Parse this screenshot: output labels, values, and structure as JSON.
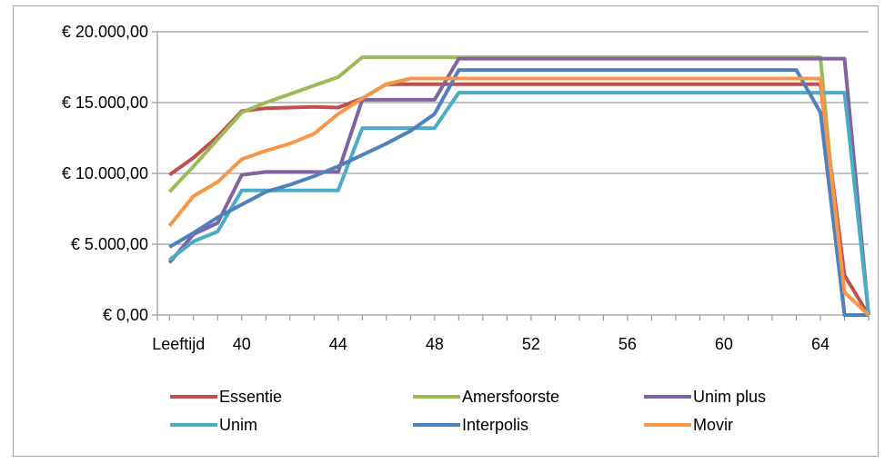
{
  "chart_data": {
    "type": "line",
    "title": "",
    "xlabel": "",
    "ylabel": "",
    "x_first_label": "Leeftijd",
    "x": [
      37,
      38,
      39,
      40,
      41,
      42,
      43,
      44,
      45,
      46,
      47,
      48,
      49,
      50,
      51,
      52,
      53,
      54,
      55,
      56,
      57,
      58,
      59,
      60,
      61,
      62,
      63,
      64,
      65,
      66
    ],
    "x_ticks": [
      "40",
      "44",
      "48",
      "52",
      "56",
      "60",
      "64"
    ],
    "ylim": [
      0,
      20000
    ],
    "y_ticks": [
      "€ 0,00",
      "€ 5.000,00",
      "€ 10.000,00",
      "€ 15.000,00",
      "€ 20.000,00"
    ],
    "grid": true,
    "legend_position": "bottom",
    "series": [
      {
        "name": "Essentie",
        "color": "#c0504d",
        "values": [
          9900,
          11100,
          12600,
          14400,
          14600,
          14650,
          14700,
          14650,
          15300,
          16300,
          16300,
          16300,
          16300,
          16300,
          16300,
          16300,
          16300,
          16300,
          16300,
          16300,
          16300,
          16300,
          16300,
          16300,
          16300,
          16300,
          16300,
          16300,
          2800,
          0
        ]
      },
      {
        "name": "Amersfoorste",
        "color": "#9bbb59",
        "values": [
          8700,
          10500,
          12400,
          14300,
          15000,
          15600,
          16200,
          16800,
          18200,
          18200,
          18200,
          18200,
          18200,
          18200,
          18200,
          18200,
          18200,
          18200,
          18200,
          18200,
          18200,
          18200,
          18200,
          18200,
          18200,
          18200,
          18200,
          18200,
          0,
          0
        ]
      },
      {
        "name": "Unim plus",
        "color": "#8064a2",
        "values": [
          3700,
          5700,
          6500,
          9900,
          10100,
          10100,
          10100,
          10100,
          15200,
          15200,
          15200,
          15200,
          18100,
          18100,
          18100,
          18100,
          18100,
          18100,
          18100,
          18100,
          18100,
          18100,
          18100,
          18100,
          18100,
          18100,
          18100,
          18100,
          18100,
          0
        ]
      },
      {
        "name": "Unim",
        "color": "#4bacc6",
        "values": [
          3900,
          5200,
          5900,
          8800,
          8800,
          8800,
          8800,
          8800,
          13200,
          13200,
          13200,
          13200,
          15700,
          15700,
          15700,
          15700,
          15700,
          15700,
          15700,
          15700,
          15700,
          15700,
          15700,
          15700,
          15700,
          15700,
          15700,
          15700,
          15700,
          0
        ]
      },
      {
        "name": "Interpolis",
        "color": "#4f81bd",
        "values": [
          4800,
          5800,
          6900,
          7800,
          8700,
          9200,
          9800,
          10500,
          11300,
          12100,
          13000,
          14200,
          17300,
          17300,
          17300,
          17300,
          17300,
          17300,
          17300,
          17300,
          17300,
          17300,
          17300,
          17300,
          17300,
          17300,
          17300,
          14300,
          0,
          0
        ]
      },
      {
        "name": "Movir",
        "color": "#f79646",
        "values": [
          6300,
          8400,
          9400,
          11000,
          11600,
          12100,
          12800,
          14200,
          15300,
          16300,
          16700,
          16700,
          16700,
          16700,
          16700,
          16700,
          16700,
          16700,
          16700,
          16700,
          16700,
          16700,
          16700,
          16700,
          16700,
          16700,
          16700,
          16700,
          1600,
          0
        ]
      }
    ]
  }
}
